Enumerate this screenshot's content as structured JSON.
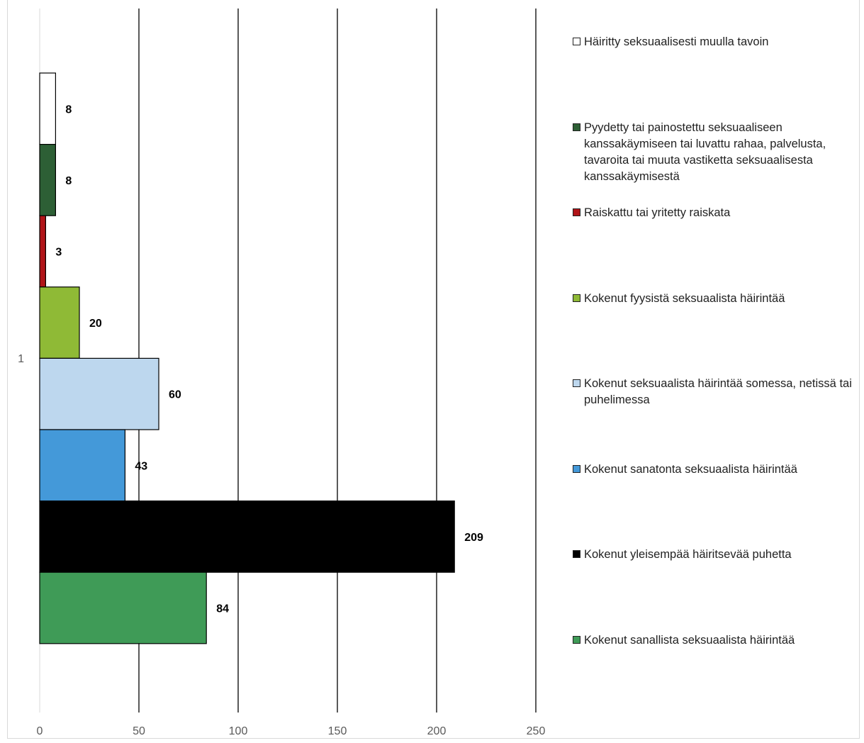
{
  "chart_data": {
    "type": "bar",
    "orientation": "horizontal",
    "category": "1",
    "xlim": [
      0,
      250
    ],
    "xticks": [
      0,
      50,
      100,
      150,
      200,
      250
    ],
    "grid": true,
    "legend_position": "right",
    "series": [
      {
        "name": "Häiritty seksuaalisesti muulla tavoin",
        "value": 8,
        "color": "#ffffff"
      },
      {
        "name": "Pyydetty tai painostettu seksuaaliseen kanssakäymiseen tai luvattu rahaa, palvelusta, tavaroita tai muuta vastiketta seksuaalisesta kanssakäymisestä",
        "value": 8,
        "color": "#2d5f35"
      },
      {
        "name": "Raiskattu tai yritetty raiskata",
        "value": 3,
        "color": "#b01418"
      },
      {
        "name": "Kokenut fyysistä seksuaalista häirintää",
        "value": 20,
        "color": "#8fba36"
      },
      {
        "name": "Kokenut seksuaalista häirintää somessa, netissä tai puhelimessa",
        "value": 60,
        "color": "#bdd7ee"
      },
      {
        "name": "Kokenut sanatonta seksuaalista häirintää",
        "value": 43,
        "color": "#4499d9"
      },
      {
        "name": "Kokenut yleisempää häiritsevää puhetta",
        "value": 209,
        "color": "#000000"
      },
      {
        "name": "Kokenut sanallista seksuaalista häirintää",
        "value": 84,
        "color": "#3f9b57"
      }
    ]
  }
}
